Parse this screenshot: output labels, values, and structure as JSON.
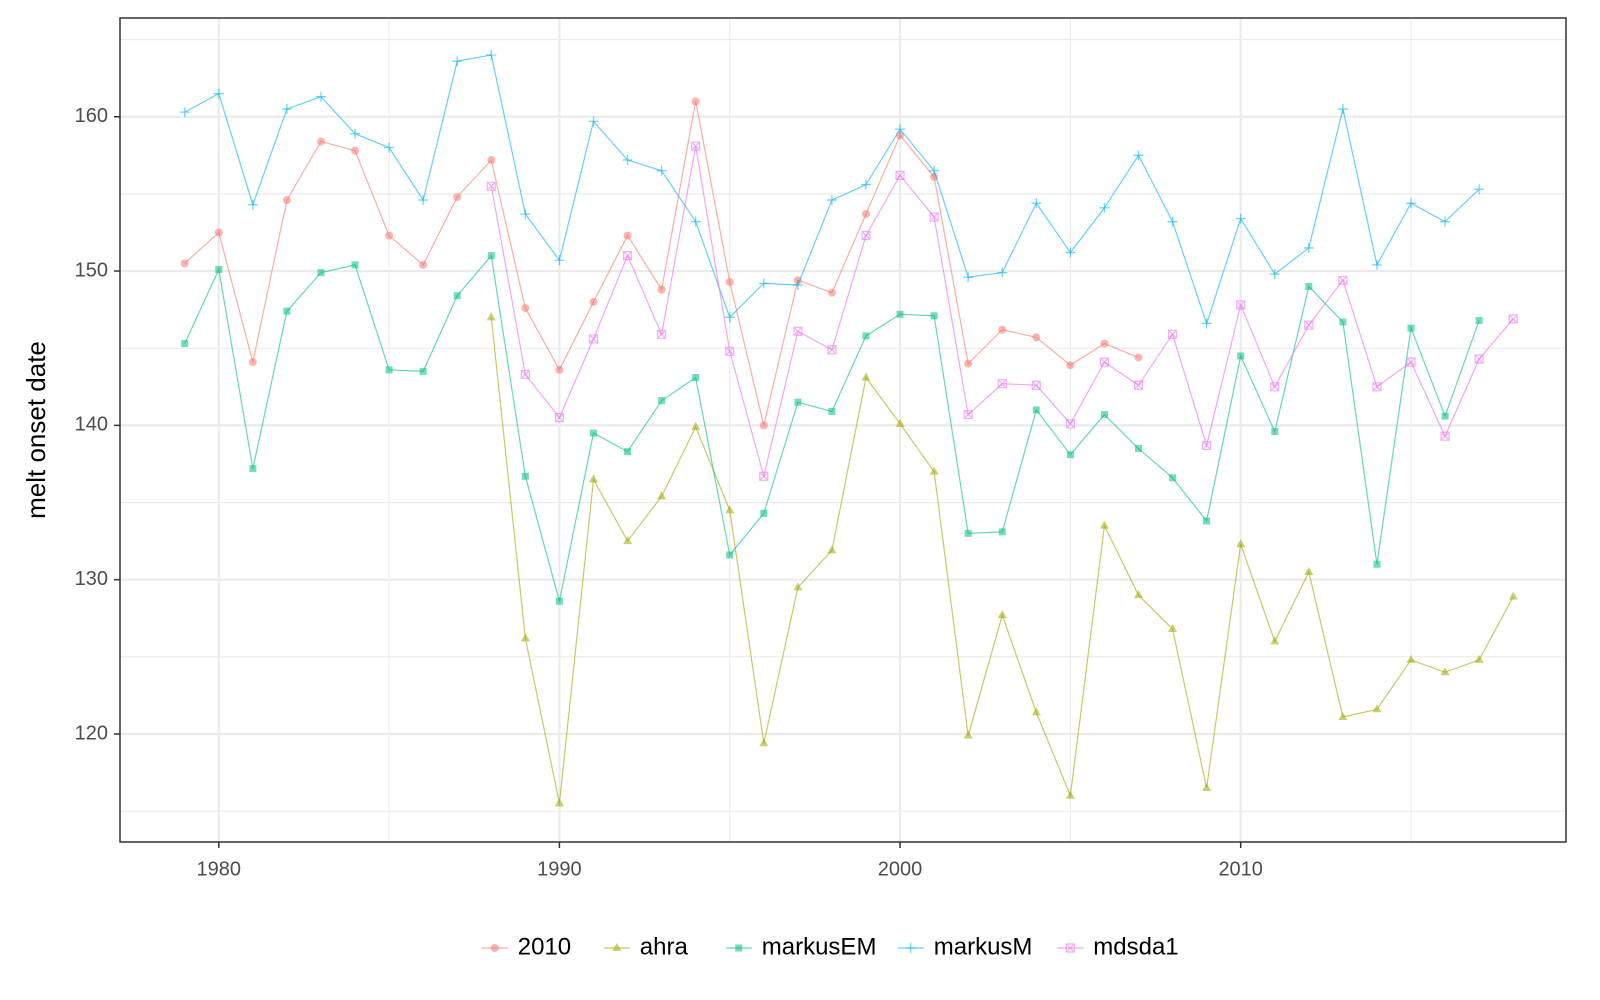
{
  "chart_data": {
    "type": "line",
    "y_label": "melt onset date",
    "x": [
      1979,
      1980,
      1981,
      1982,
      1983,
      1984,
      1985,
      1986,
      1987,
      1988,
      1989,
      1990,
      1991,
      1992,
      1993,
      1994,
      1995,
      1996,
      1997,
      1998,
      1999,
      2000,
      2001,
      2002,
      2003,
      2004,
      2005,
      2006,
      2007,
      2008,
      2009,
      2010,
      2011,
      2012,
      2013,
      2014,
      2015,
      2016,
      2017,
      2018
    ],
    "xlim": [
      1977.1,
      2019.55
    ],
    "xticks": [
      1980,
      1990,
      2000,
      2010
    ],
    "ylim": [
      113,
      166.4
    ],
    "yticks": [
      120,
      130,
      140,
      150,
      160
    ],
    "grid": true,
    "legend": "bottom",
    "series": [
      {
        "name": "2010",
        "color": "#F8766D",
        "shape": "circle",
        "values": [
          150.5,
          152.5,
          144.1,
          154.6,
          158.4,
          157.8,
          152.3,
          150.4,
          154.8,
          157.2,
          147.6,
          143.6,
          148.0,
          152.3,
          148.8,
          161.0,
          149.3,
          140.0,
          149.4,
          148.6,
          153.7,
          158.8,
          156.1,
          144.0,
          146.2,
          145.7,
          143.9,
          145.3,
          144.4,
          null,
          null,
          null,
          null,
          null,
          null,
          null,
          null,
          null,
          null,
          null
        ]
      },
      {
        "name": "ahra",
        "color": "#A3A500",
        "shape": "triangle",
        "values": [
          null,
          null,
          null,
          null,
          null,
          null,
          null,
          null,
          null,
          147.0,
          126.2,
          115.5,
          136.5,
          132.5,
          135.4,
          139.9,
          134.5,
          119.4,
          129.5,
          131.9,
          143.1,
          140.1,
          137.0,
          119.9,
          127.7,
          121.4,
          116.0,
          133.5,
          129.0,
          126.8,
          116.5,
          132.3,
          126.0,
          130.5,
          121.1,
          121.6,
          124.8,
          124.0,
          124.8,
          128.9
        ]
      },
      {
        "name": "markusEM",
        "color": "#00BF7D",
        "shape": "square",
        "values": [
          145.3,
          150.1,
          137.2,
          147.4,
          149.9,
          150.4,
          143.6,
          143.5,
          148.4,
          151.0,
          136.7,
          128.6,
          139.5,
          138.3,
          141.6,
          143.1,
          131.6,
          134.3,
          141.5,
          140.9,
          145.8,
          147.2,
          147.1,
          133.0,
          133.1,
          141.0,
          138.1,
          140.7,
          138.5,
          136.6,
          133.8,
          144.5,
          139.6,
          149.0,
          146.7,
          131.0,
          146.3,
          140.6,
          146.8,
          null
        ]
      },
      {
        "name": "markusM",
        "color": "#00B0F6",
        "shape": "plus",
        "values": [
          160.3,
          161.5,
          154.3,
          160.5,
          161.3,
          158.9,
          158.0,
          154.6,
          163.6,
          164.0,
          153.7,
          150.7,
          159.7,
          157.2,
          156.5,
          153.2,
          147.0,
          149.2,
          149.1,
          154.6,
          155.6,
          159.2,
          156.5,
          149.6,
          149.9,
          154.4,
          151.2,
          154.1,
          157.5,
          153.2,
          146.6,
          153.4,
          149.8,
          151.5,
          160.5,
          150.4,
          154.4,
          153.2,
          155.3,
          null
        ]
      },
      {
        "name": "mdsda1",
        "color": "#E76BF3",
        "shape": "square-cross",
        "values": [
          null,
          null,
          null,
          null,
          null,
          null,
          null,
          null,
          null,
          155.5,
          143.3,
          140.5,
          145.6,
          151.0,
          145.9,
          158.1,
          144.8,
          136.7,
          146.1,
          144.9,
          152.3,
          156.2,
          153.5,
          140.7,
          142.7,
          142.6,
          140.1,
          144.1,
          142.6,
          145.9,
          138.7,
          147.8,
          142.5,
          146.5,
          149.4,
          142.5,
          144.1,
          139.3,
          144.3,
          146.9
        ]
      }
    ]
  }
}
